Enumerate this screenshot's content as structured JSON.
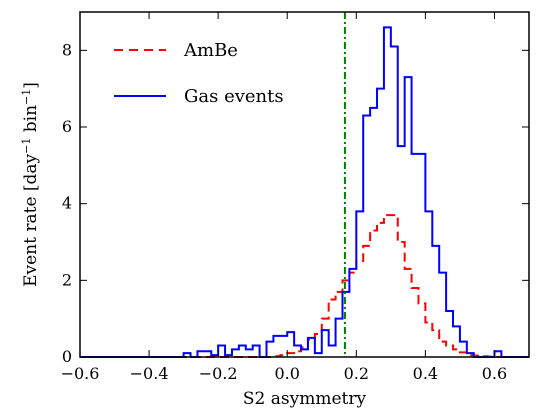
{
  "chart_data": {
    "type": "line",
    "xlabel": "S2 asymmetry",
    "ylabel": "Event rate [day",
    "ylabel_sup1": "−1",
    "ylabel_mid": " bin",
    "ylabel_sup2": "−1",
    "ylabel_end": "]",
    "xlim": [
      -0.6,
      0.7
    ],
    "ylim": [
      0,
      9
    ],
    "x_ticks": [
      -0.6,
      -0.4,
      -0.2,
      0.0,
      0.2,
      0.4,
      0.6
    ],
    "x_tick_labels": [
      "−0.6",
      "−0.4",
      "−0.2",
      "0.0",
      "0.2",
      "0.4",
      "0.6"
    ],
    "y_ticks": [
      0,
      2,
      4,
      6,
      8
    ],
    "y_tick_labels": [
      "0",
      "2",
      "4",
      "6",
      "8"
    ],
    "vline": {
      "x": 0.167,
      "color": "#008000",
      "style": "dashdot"
    },
    "legend_position": "top-left",
    "grid": false,
    "bin_width": 0.02,
    "series": [
      {
        "name": "AmBe",
        "color": "#ff0000",
        "style": "dashed",
        "bin_edges_start": -0.6,
        "values": [
          0,
          0,
          0,
          0,
          0,
          0,
          0,
          0,
          0,
          0,
          0,
          0,
          0,
          0,
          0,
          0,
          0,
          0,
          0,
          0,
          0,
          0,
          0,
          0,
          0,
          0,
          0,
          0,
          0.02,
          0.05,
          0.1,
          0.15,
          0.25,
          0.45,
          0.6,
          1.0,
          1.5,
          1.7,
          2.0,
          2.2,
          2.5,
          2.9,
          3.3,
          3.5,
          3.7,
          3.7,
          3.0,
          2.3,
          1.8,
          1.4,
          0.9,
          0.7,
          0.4,
          0.3,
          0.2,
          0.12,
          0.05,
          0.04,
          0.02,
          0.01,
          0,
          0,
          0,
          0,
          0
        ]
      },
      {
        "name": "Gas events",
        "color": "#0000ff",
        "style": "solid",
        "bin_edges_start": -0.6,
        "values": [
          0,
          0,
          0,
          0,
          0,
          0,
          0,
          0,
          0,
          0,
          0,
          0,
          0,
          0,
          0,
          0.1,
          0,
          0.15,
          0.15,
          0.05,
          0.3,
          0.05,
          0.2,
          0.3,
          0.2,
          0.3,
          0,
          0.4,
          0.55,
          0.55,
          0.65,
          0.3,
          0.2,
          0.5,
          0.1,
          0.7,
          0.3,
          1.0,
          1.7,
          2.3,
          3.8,
          6.3,
          6.5,
          7.0,
          8.6,
          8.1,
          5.5,
          7.3,
          5.3,
          5.3,
          3.8,
          2.9,
          2.2,
          1.2,
          0.8,
          0.4,
          0.1,
          0,
          0,
          0,
          0.15,
          0,
          0,
          0,
          0
        ]
      }
    ]
  }
}
